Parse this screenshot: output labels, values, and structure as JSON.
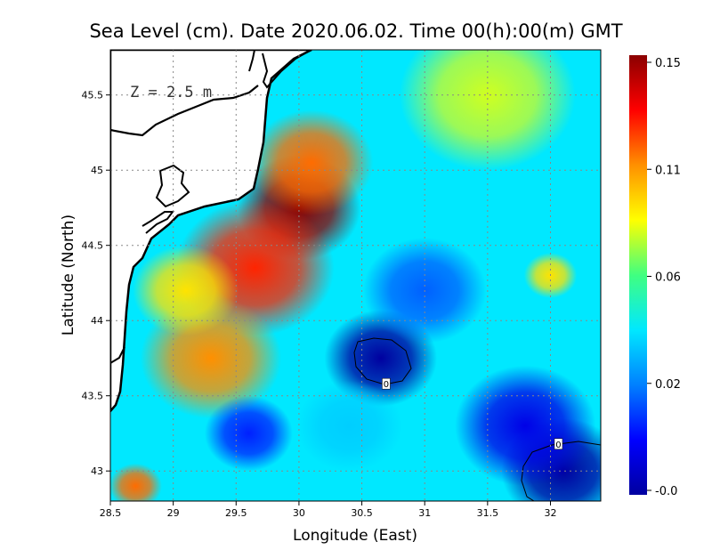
{
  "chart_data": {
    "type": "heatmap",
    "title": "Sea Level (cm). Date 2020.06.02. Time 00(h):00(m) GMT",
    "xlabel": "Longitude (East)",
    "ylabel": "Latitude (North)",
    "annotation": "Z = 2.5 m",
    "xlim": [
      28.5,
      32.4
    ],
    "ylim": [
      42.8,
      45.8
    ],
    "xticks": [
      "28.5",
      "29",
      "29.5",
      "30",
      "30.5",
      "31",
      "31.5",
      "32"
    ],
    "yticks": [
      "43",
      "43.5",
      "44",
      "44.5",
      "45",
      "45.5"
    ],
    "grid": true,
    "colorbar": {
      "min": -0.005,
      "max": 0.155,
      "ticks": [
        "0.15",
        "0.11",
        "0.06",
        "0.02",
        "-0.0"
      ],
      "colors": [
        "#0000a0",
        "#0000ff",
        "#0080ff",
        "#00e8ff",
        "#40ff80",
        "#ffff00",
        "#ff9000",
        "#ff0000",
        "#8b0000"
      ]
    },
    "contour_labels": [
      {
        "text": "0",
        "lon": 30.69,
        "lat": 43.58
      },
      {
        "text": "0",
        "lon": 32.06,
        "lat": 43.18
      }
    ],
    "field_features": [
      {
        "lon": 30.0,
        "lat": 44.75,
        "value": 0.155,
        "radius": 0.35
      },
      {
        "lon": 29.65,
        "lat": 44.35,
        "value": 0.13,
        "radius": 0.45
      },
      {
        "lon": 29.3,
        "lat": 43.75,
        "value": 0.115,
        "radius": 0.4
      },
      {
        "lon": 30.1,
        "lat": 45.05,
        "value": 0.12,
        "radius": 0.35
      },
      {
        "lon": 29.1,
        "lat": 44.2,
        "value": 0.1,
        "radius": 0.3
      },
      {
        "lon": 30.65,
        "lat": 43.75,
        "value": -0.01,
        "radius": 0.32
      },
      {
        "lon": 32.1,
        "lat": 43.0,
        "value": -0.01,
        "radius": 0.35
      },
      {
        "lon": 31.8,
        "lat": 43.3,
        "value": 0.01,
        "radius": 0.4
      },
      {
        "lon": 29.6,
        "lat": 43.25,
        "value": 0.02,
        "radius": 0.25
      },
      {
        "lon": 31.0,
        "lat": 44.2,
        "value": 0.03,
        "radius": 0.35
      },
      {
        "lon": 32.0,
        "lat": 44.3,
        "value": 0.1,
        "radius": 0.15
      },
      {
        "lon": 31.5,
        "lat": 45.5,
        "value": 0.09,
        "radius": 0.5
      },
      {
        "lon": 28.7,
        "lat": 42.9,
        "value": 0.12,
        "radius": 0.15
      },
      {
        "lon": 30.4,
        "lat": 43.3,
        "value": 0.05,
        "radius": 0.3
      }
    ]
  }
}
